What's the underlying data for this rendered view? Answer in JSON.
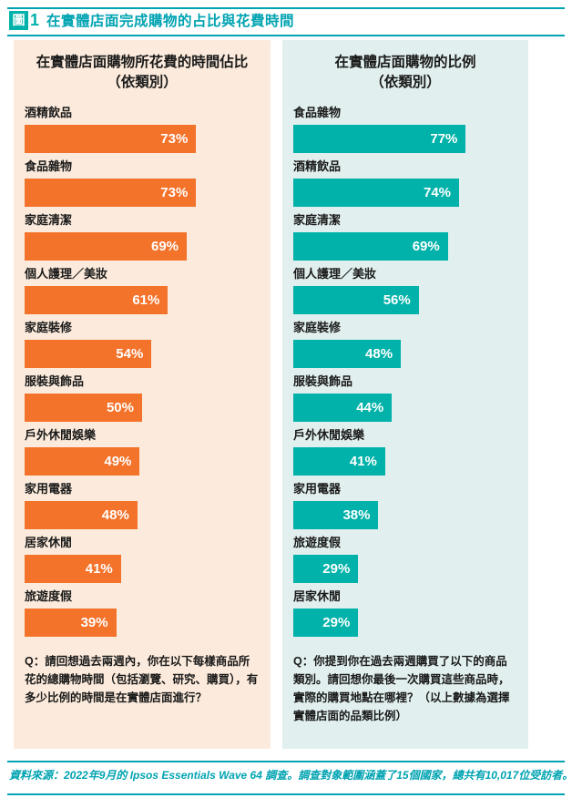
{
  "title": {
    "fig_box": "圖",
    "fig_num": "1",
    "text": "在實體店面完成購物的占比與花費時間"
  },
  "colors": {
    "accent_teal": "#00a3b1",
    "bar_orange": "#f4732b",
    "bar_teal": "#00b2a9",
    "left_panel_bg": "#fcebdc",
    "right_panel_bg": "#e1f0ee",
    "text_dark": "#1a1a1a"
  },
  "panels": [
    {
      "heading_line1": "在實體店面購物所花費的時間佔比",
      "heading_line2": "（依類別）",
      "bg_color": "#fcebdc",
      "bar_color": "#f4732b",
      "items": [
        {
          "label": "酒精飲品",
          "value": 73,
          "display": "73%"
        },
        {
          "label": "食品雜物",
          "value": 73,
          "display": "73%"
        },
        {
          "label": "家庭清潔",
          "value": 69,
          "display": "69%"
        },
        {
          "label": "個人護理／美妝",
          "value": 61,
          "display": "61%"
        },
        {
          "label": "家庭裝修",
          "value": 54,
          "display": "54%"
        },
        {
          "label": "服裝與飾品",
          "value": 50,
          "display": "50%"
        },
        {
          "label": "戶外休閒娛樂",
          "value": 49,
          "display": "49%"
        },
        {
          "label": "家用電器",
          "value": 48,
          "display": "48%"
        },
        {
          "label": "居家休閒",
          "value": 41,
          "display": "41%"
        },
        {
          "label": "旅遊度假",
          "value": 39,
          "display": "39%"
        }
      ],
      "question": "Q：請回想過去兩週內，你在以下每樣商品所花的總購物時間（包括瀏覽、研究、購買），有多少比例的時間是在實體店面進行？"
    },
    {
      "heading_line1": "在實體店面購物的比例",
      "heading_line2": "（依類別）",
      "bg_color": "#e1f0ee",
      "bar_color": "#00b2a9",
      "items": [
        {
          "label": "食品雜物",
          "value": 77,
          "display": "77%"
        },
        {
          "label": "酒精飲品",
          "value": 74,
          "display": "74%"
        },
        {
          "label": "家庭清潔",
          "value": 69,
          "display": "69%"
        },
        {
          "label": "個人護理／美妝",
          "value": 56,
          "display": "56%"
        },
        {
          "label": "家庭裝修",
          "value": 48,
          "display": "48%"
        },
        {
          "label": "服裝與飾品",
          "value": 44,
          "display": "44%"
        },
        {
          "label": "戶外休閒娛樂",
          "value": 41,
          "display": "41%"
        },
        {
          "label": "家用電器",
          "value": 38,
          "display": "38%"
        },
        {
          "label": "旅遊度假",
          "value": 29,
          "display": "29%"
        },
        {
          "label": "居家休閒",
          "value": 29,
          "display": "29%"
        }
      ],
      "question": "Q：你提到你在過去兩週購買了以下的商品類別。請回想你最後一次購買這些商品時，實際的購買地點在哪裡？（以上數據為選擇實體店面的品類比例）"
    }
  ],
  "chart_data": [
    {
      "type": "bar",
      "orientation": "horizontal",
      "title": "在實體店面購物所花費的時間佔比（依類別）",
      "categories": [
        "酒精飲品",
        "食品雜物",
        "家庭清潔",
        "個人護理／美妝",
        "家庭裝修",
        "服裝與飾品",
        "戶外休閒娛樂",
        "家用電器",
        "居家休閒",
        "旅遊度假"
      ],
      "values": [
        73,
        73,
        69,
        61,
        54,
        50,
        49,
        48,
        41,
        39
      ],
      "unit": "%",
      "xlim": [
        0,
        100
      ],
      "data_labels": true,
      "grid": false,
      "legend": false,
      "bar_color": "#f4732b"
    },
    {
      "type": "bar",
      "orientation": "horizontal",
      "title": "在實體店面購物的比例（依類別）",
      "categories": [
        "食品雜物",
        "酒精飲品",
        "家庭清潔",
        "個人護理／美妝",
        "家庭裝修",
        "服裝與飾品",
        "戶外休閒娛樂",
        "家用電器",
        "旅遊度假",
        "居家休閒"
      ],
      "values": [
        77,
        74,
        69,
        56,
        48,
        44,
        41,
        38,
        29,
        29
      ],
      "unit": "%",
      "xlim": [
        0,
        100
      ],
      "data_labels": true,
      "grid": false,
      "legend": false,
      "bar_color": "#00b2a9"
    }
  ],
  "footer": {
    "text": "資料來源：2022年9月的 Ipsos Essentials Wave 64 調查。調查對象範圍涵蓋了15個國家，總共有10,017位受訪者。"
  }
}
